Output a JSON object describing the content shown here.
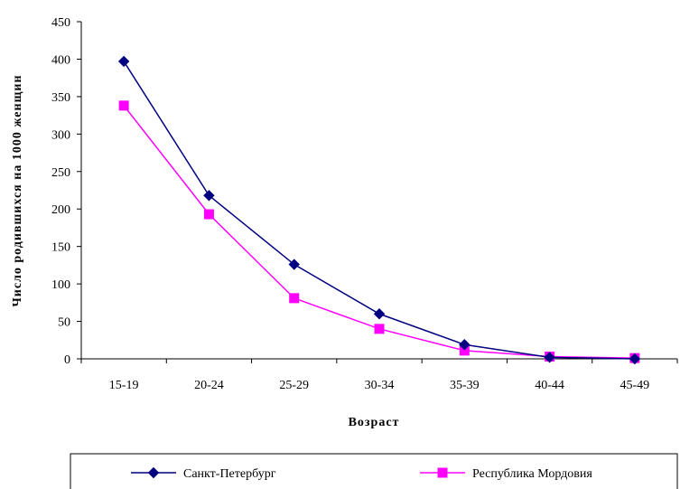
{
  "chart_data": {
    "type": "line",
    "xlabel": "Возраст",
    "ylabel": "Число родившихся на 1000 женщин",
    "categories": [
      "15-19",
      "20-24",
      "25-29",
      "30-34",
      "35-39",
      "40-44",
      "45-49"
    ],
    "ylim": [
      0,
      450
    ],
    "yticks": [
      0,
      50,
      100,
      150,
      200,
      250,
      300,
      350,
      400,
      450
    ],
    "grid": false,
    "legend": "bottom",
    "series": [
      {
        "name": "Санкт-Петербург",
        "color": "#000080",
        "marker": "diamond",
        "values": [
          397,
          218,
          126,
          60,
          19,
          2,
          0
        ]
      },
      {
        "name": "Республика Мордовия",
        "color": "#FF00FF",
        "marker": "square",
        "values": [
          338,
          193,
          81,
          40,
          11,
          3,
          1
        ]
      }
    ]
  }
}
